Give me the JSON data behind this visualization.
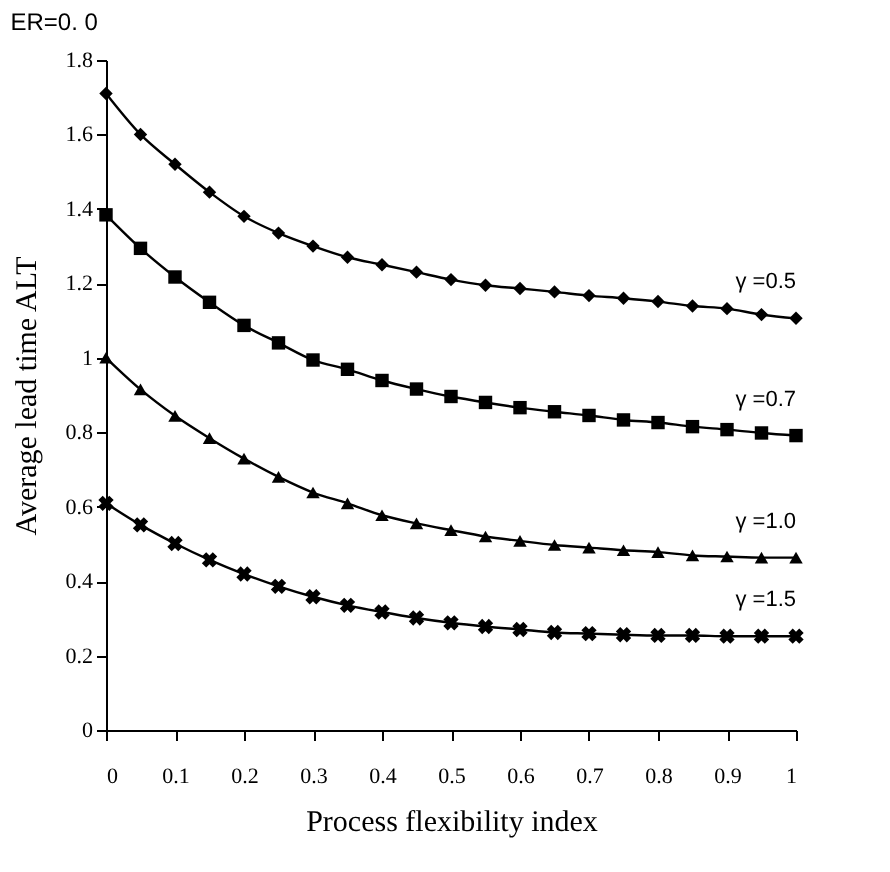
{
  "chart_data": {
    "type": "line",
    "title": "ER=0. 0",
    "xlabel": "Process flexibility index",
    "ylabel": "Average lead time ALT",
    "x": [
      0,
      0.05,
      0.1,
      0.15,
      0.2,
      0.25,
      0.3,
      0.35,
      0.4,
      0.45,
      0.5,
      0.55,
      0.6,
      0.65,
      0.7,
      0.75,
      0.8,
      0.85,
      0.9,
      0.95,
      1
    ],
    "series": [
      {
        "color": "#000000",
        "marker": "diamond",
        "values": [
          1.71,
          1.6,
          1.52,
          1.445,
          1.38,
          1.335,
          1.3,
          1.27,
          1.25,
          1.23,
          1.21,
          1.195,
          1.186,
          1.177,
          1.167,
          1.16,
          1.151,
          1.139,
          1.132,
          1.116,
          1.106
        ]
      },
      {
        "color": "#000000",
        "marker": "square",
        "values": [
          1.384,
          1.294,
          1.217,
          1.149,
          1.087,
          1.04,
          0.994,
          0.969,
          0.939,
          0.916,
          0.896,
          0.88,
          0.866,
          0.855,
          0.845,
          0.833,
          0.826,
          0.815,
          0.807,
          0.798,
          0.791
        ]
      },
      {
        "color": "#000000",
        "marker": "triangle",
        "values": [
          1.0,
          0.915,
          0.844,
          0.784,
          0.729,
          0.68,
          0.638,
          0.609,
          0.577,
          0.555,
          0.537,
          0.52,
          0.508,
          0.497,
          0.49,
          0.483,
          0.478,
          0.469,
          0.466,
          0.463,
          0.463
        ]
      },
      {
        "color": "#000000",
        "marker": "cross",
        "values": [
          0.609,
          0.551,
          0.501,
          0.457,
          0.419,
          0.386,
          0.358,
          0.335,
          0.317,
          0.301,
          0.288,
          0.278,
          0.27,
          0.262,
          0.259,
          0.256,
          0.254,
          0.254,
          0.252,
          0.252,
          0.252
        ]
      }
    ],
    "annotations": [
      "γ =0.5",
      "γ =0.7",
      "γ =1.0",
      "γ =1.5"
    ],
    "xlim": [
      0,
      1
    ],
    "xticks": [
      0,
      0.1,
      0.2,
      0.3,
      0.4,
      0.5,
      0.6,
      0.7,
      0.8,
      0.9,
      1
    ],
    "ylim": [
      0,
      1.8
    ],
    "yticks": [
      0,
      0.2,
      0.4,
      0.6,
      0.8,
      1,
      1.2,
      1.4,
      1.6,
      1.8
    ],
    "grid": false,
    "line_style": "solid"
  }
}
